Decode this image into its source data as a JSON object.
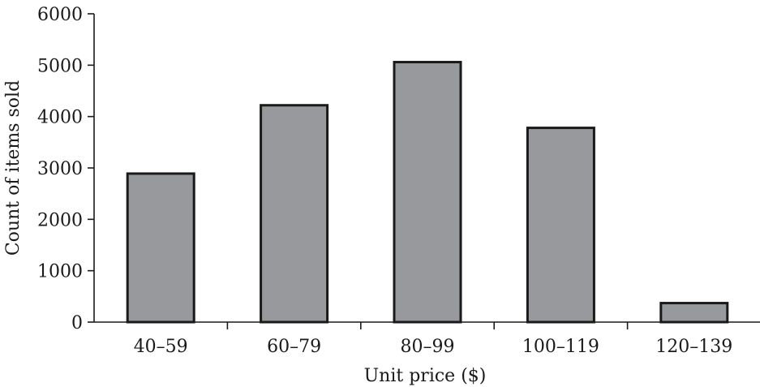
{
  "chart_data": {
    "type": "bar",
    "xlabel": "Unit price ($)",
    "ylabel": "Count of items sold",
    "categories": [
      "40–59",
      "60–79",
      "80–99",
      "100–119",
      "120–139"
    ],
    "values": [
      2890,
      4220,
      5060,
      3780,
      370
    ],
    "ylim": [
      0,
      6000
    ],
    "yticks": [
      0,
      1000,
      2000,
      3000,
      4000,
      5000,
      6000
    ],
    "grid": false,
    "legend": "none",
    "bar_color": "#97999c",
    "edge_color": "#1a1a1a"
  }
}
